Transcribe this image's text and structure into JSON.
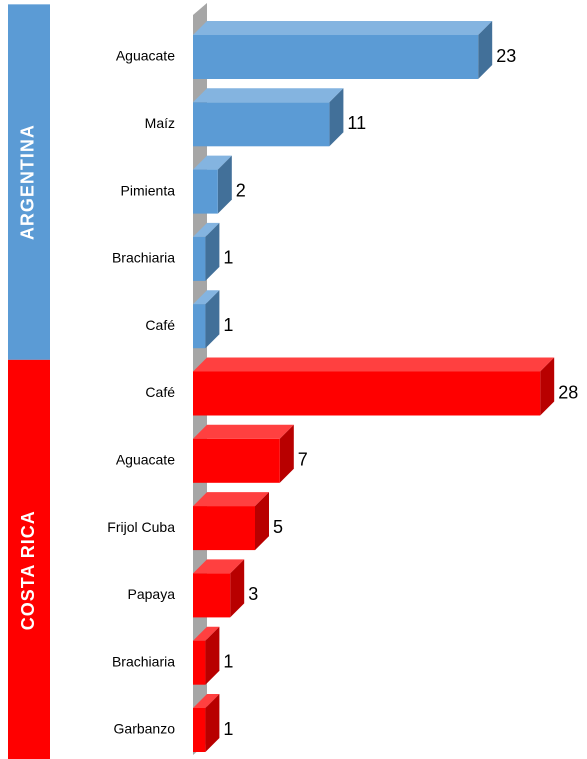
{
  "chart_data": {
    "type": "bar",
    "groups": [
      {
        "name": "ARGENTINA",
        "color": "#5b9bd5",
        "categories": [
          "Aguacate",
          "Maíz",
          "Pimienta",
          "Brachiaria",
          "Café"
        ],
        "values": [
          23,
          11,
          2,
          1,
          1
        ]
      },
      {
        "name": "COSTA RICA",
        "color": "#ff0000",
        "categories": [
          "Café",
          "Aguacate",
          "Frijol Cuba",
          "Papaya",
          "Brachiaria",
          "Garbanzo"
        ],
        "values": [
          28,
          7,
          5,
          3,
          1,
          1
        ]
      }
    ]
  }
}
